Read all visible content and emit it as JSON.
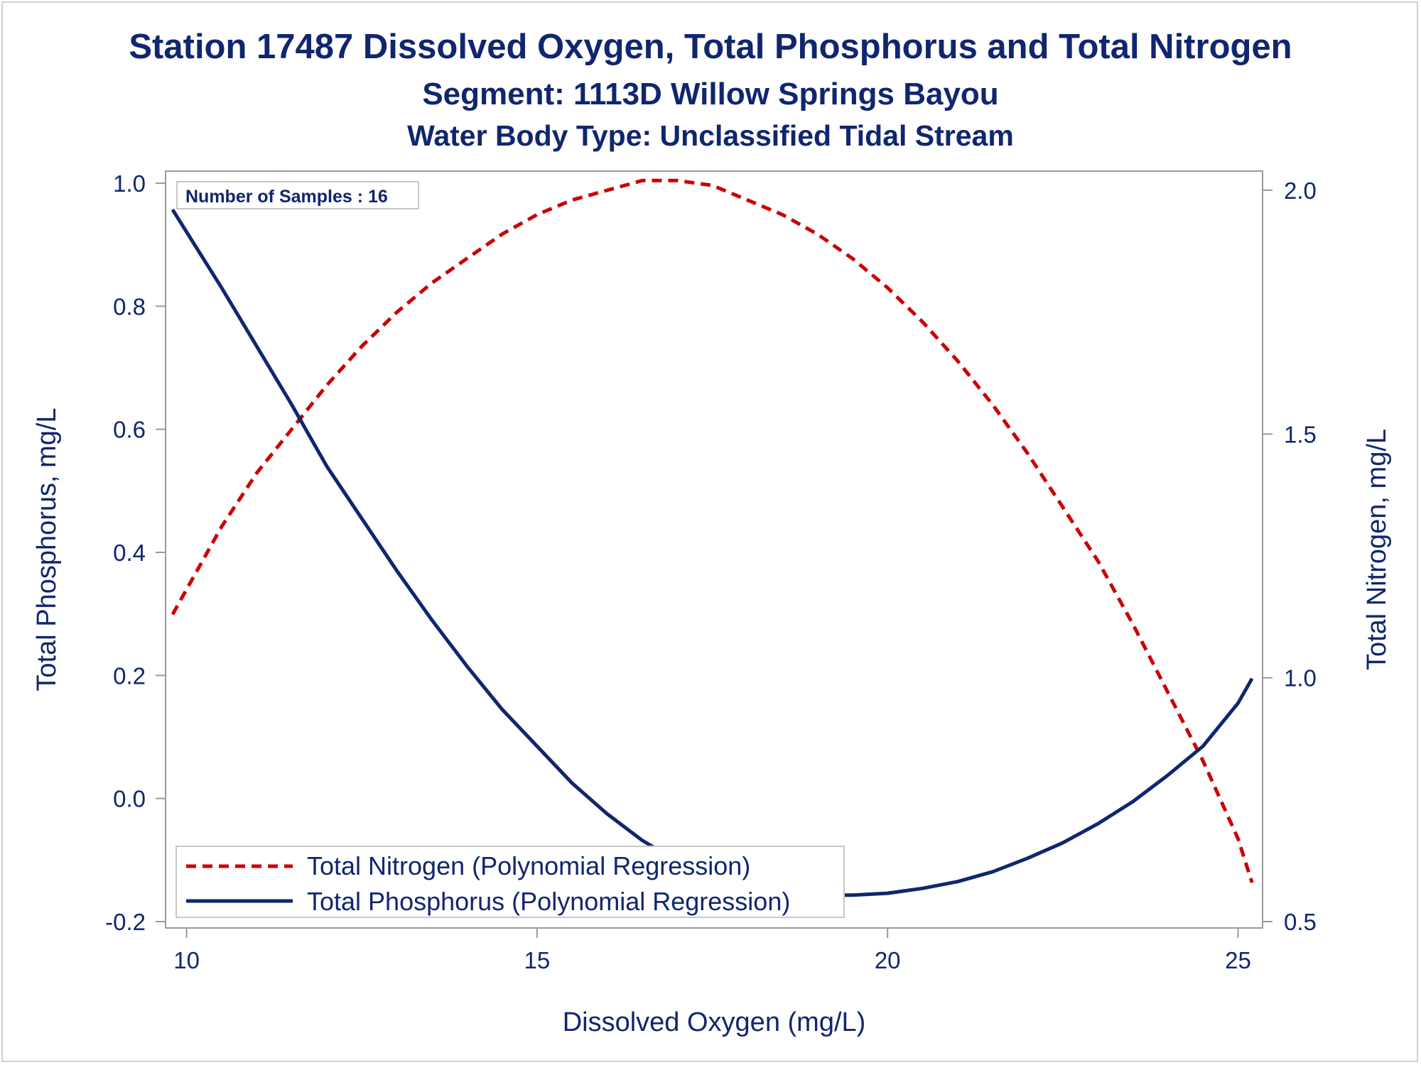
{
  "titles": {
    "line1": "Station 17487  Dissolved Oxygen, Total Phosphorus and Total Nitrogen",
    "line2": "Segment: 1113D  Willow Springs Bayou",
    "line3": "Water Body Type: Unclassified Tidal Stream"
  },
  "inset_label": "Number of Samples : 16",
  "colors": {
    "text": "#10266e",
    "phosphorus": "#10266e",
    "nitrogen": "#cc0000",
    "axis": "#9a9a9a"
  },
  "chart_data": {
    "type": "line",
    "xlabel": "Dissolved Oxygen (mg/L)",
    "ylabel": "Total Phosphorus, mg/L",
    "y2label": "Total Nitrogen, mg/L",
    "xlim": [
      9.7,
      25.35
    ],
    "ylim": [
      -0.2,
      1.0
    ],
    "y2lim": [
      0.5,
      2.0
    ],
    "x_ticks": [
      "10",
      "15",
      "20",
      "25"
    ],
    "y_ticks": [
      "-0.2",
      "0.0",
      "0.2",
      "0.4",
      "0.6",
      "0.8",
      "1.0"
    ],
    "y2_ticks": [
      "0.5",
      "1.0",
      "1.5",
      "2.0"
    ],
    "grid": false,
    "legend_position": "bottom-left",
    "series": [
      {
        "name": "Total Nitrogen (Polynomial Regression)",
        "axis": "right",
        "style": "dashed",
        "x": [
          9.8,
          10.5,
          11.0,
          11.5,
          12.0,
          12.5,
          13.0,
          13.5,
          14.0,
          14.5,
          15.0,
          15.5,
          16.0,
          16.5,
          17.0,
          17.5,
          18.0,
          18.5,
          19.0,
          19.5,
          20.0,
          20.5,
          21.0,
          21.5,
          22.0,
          22.5,
          23.0,
          23.5,
          24.0,
          24.5,
          25.0,
          25.2
        ],
        "values": [
          1.13,
          1.31,
          1.42,
          1.51,
          1.6,
          1.68,
          1.75,
          1.81,
          1.86,
          1.91,
          1.95,
          1.98,
          2.0,
          2.02,
          2.02,
          2.01,
          1.98,
          1.95,
          1.91,
          1.86,
          1.8,
          1.73,
          1.65,
          1.56,
          1.46,
          1.35,
          1.24,
          1.11,
          0.97,
          0.83,
          0.67,
          0.58
        ]
      },
      {
        "name": "Total Phosphorus (Polynomial Regression)",
        "axis": "left",
        "style": "solid",
        "x": [
          9.8,
          10.5,
          11.0,
          11.5,
          12.0,
          12.5,
          13.0,
          13.5,
          14.0,
          14.5,
          15.0,
          15.5,
          16.0,
          16.5,
          17.0,
          17.5,
          18.0,
          18.5,
          19.0,
          19.5,
          20.0,
          20.5,
          21.0,
          21.5,
          22.0,
          22.5,
          23.0,
          23.5,
          24.0,
          24.5,
          25.0,
          25.2
        ],
        "values": [
          0.957,
          0.83,
          0.735,
          0.64,
          0.54,
          0.455,
          0.37,
          0.29,
          0.215,
          0.145,
          0.085,
          0.025,
          -0.025,
          -0.068,
          -0.102,
          -0.127,
          -0.143,
          -0.152,
          -0.157,
          -0.157,
          -0.154,
          -0.146,
          -0.135,
          -0.119,
          -0.097,
          -0.072,
          -0.041,
          -0.005,
          0.038,
          0.085,
          0.155,
          0.195
        ]
      }
    ]
  }
}
